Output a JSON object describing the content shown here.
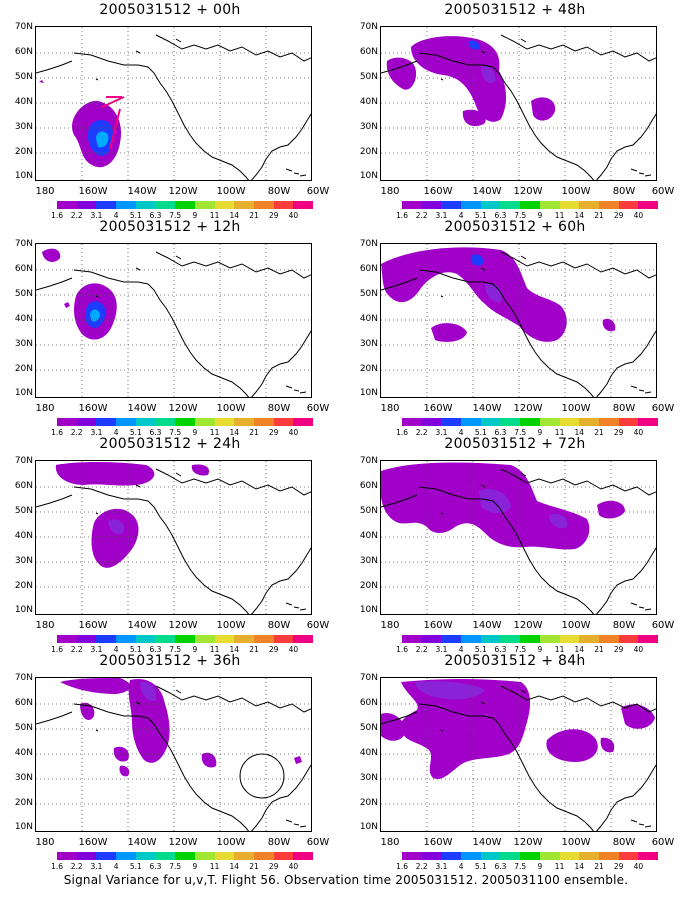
{
  "panels": [
    {
      "title": "2005031512 + 00h",
      "blobs": "p0"
    },
    {
      "title": "2005031512 + 48h",
      "blobs": "p48"
    },
    {
      "title": "2005031512 + 12h",
      "blobs": "p12"
    },
    {
      "title": "2005031512 + 60h",
      "blobs": "p60"
    },
    {
      "title": "2005031512 + 24h",
      "blobs": "p24"
    },
    {
      "title": "2005031512 + 72h",
      "blobs": "p72"
    },
    {
      "title": "2005031512 + 36h",
      "blobs": "p36"
    },
    {
      "title": "2005031512 + 84h",
      "blobs": "p84"
    }
  ],
  "y_ticks": [
    "70N",
    "60N",
    "50N",
    "40N",
    "30N",
    "20N",
    "10N"
  ],
  "x_ticks": [
    "180",
    "160W",
    "140W",
    "120W",
    "100W",
    "80W",
    "60W"
  ],
  "colorbar": {
    "labels": [
      "1.6",
      "2.2",
      "3.1",
      "4",
      "5.1",
      "6.3",
      "7.5",
      "9",
      "11",
      "14",
      "21",
      "29",
      "40"
    ],
    "colors": [
      "#a000c8",
      "#8200dc",
      "#1e3cff",
      "#0096ff",
      "#00c8c8",
      "#00dc8c",
      "#00d200",
      "#a0e632",
      "#e6dc32",
      "#e6af2d",
      "#f08228",
      "#fa3c3c",
      "#f00082"
    ]
  },
  "footer": "Signal Variance for u,v,T. Flight 56. Observation time 2005031512. 2005031100 ensemble."
}
